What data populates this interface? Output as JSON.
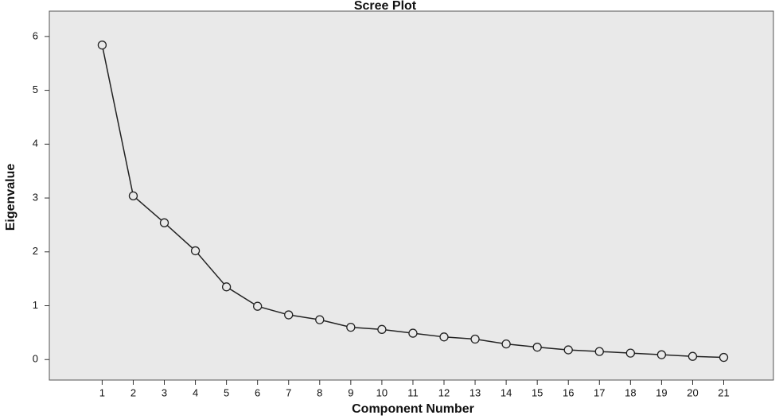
{
  "chart_data": {
    "type": "line",
    "title": "Scree Plot",
    "x_label": "Component Number",
    "y_label": "Eigenvalue",
    "x": [
      1,
      2,
      3,
      4,
      5,
      6,
      7,
      8,
      9,
      10,
      11,
      12,
      13,
      14,
      15,
      16,
      17,
      18,
      19,
      20,
      21
    ],
    "values": [
      5.84,
      3.04,
      2.54,
      2.02,
      1.35,
      0.99,
      0.83,
      0.74,
      0.6,
      0.56,
      0.49,
      0.42,
      0.38,
      0.29,
      0.23,
      0.18,
      0.15,
      0.12,
      0.09,
      0.06,
      0.04
    ],
    "color": "#222222",
    "xlim": [
      -0.7,
      22.6
    ],
    "xticks": [
      1,
      2,
      3,
      4,
      5,
      6,
      7,
      8,
      9,
      10,
      11,
      12,
      13,
      14,
      15,
      16,
      17,
      18,
      19,
      20,
      21
    ],
    "ylim": [
      -0.38,
      6.47
    ],
    "yticks": [
      0,
      1,
      2,
      3,
      4,
      5,
      6
    ],
    "grid": false
  }
}
